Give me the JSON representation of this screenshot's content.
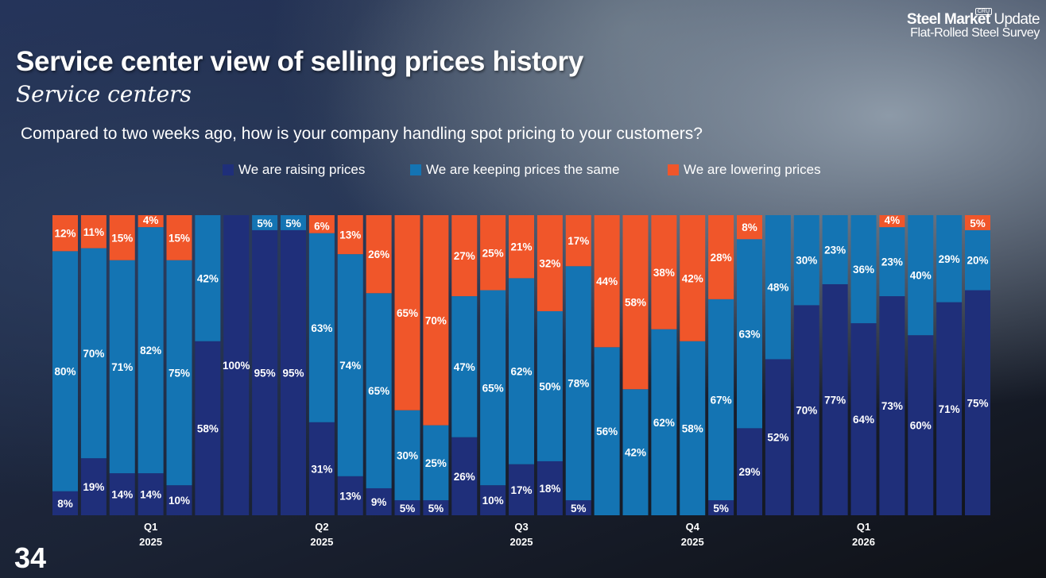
{
  "header": {
    "title": "Service center view of selling prices history",
    "subtitle": "Service centers",
    "question": "Compared to two weeks ago, how is your company handling spot pricing to your customers?"
  },
  "logo": {
    "brand_bold": "Steel Market",
    "brand_light": " Update",
    "survey": "Flat-Rolled Steel Survey",
    "badge": "CRU"
  },
  "page_number": "34",
  "colors": {
    "raising": "#1f2f7a",
    "same": "#1474b3",
    "lowering": "#f0562a"
  },
  "chart_data": {
    "type": "bar",
    "stacked": true,
    "title": "Compared to two weeks ago, how is your company handling spot pricing to your customers?",
    "legend": [
      {
        "name": "We are raising prices",
        "color": "#1f2f7a"
      },
      {
        "name": "We are keeping prices the same",
        "color": "#1474b3"
      },
      {
        "name": "We are lowering prices",
        "color": "#f0562a"
      }
    ],
    "ylim": [
      0,
      100
    ],
    "series": [
      {
        "name": "We are raising prices",
        "values": [
          8,
          19,
          14,
          14,
          10,
          58,
          100,
          95,
          95,
          31,
          13,
          9,
          5,
          5,
          26,
          10,
          17,
          18,
          5,
          0,
          0,
          0,
          0,
          5,
          29,
          52,
          70,
          77,
          64,
          73,
          60,
          71,
          75
        ]
      },
      {
        "name": "We are keeping prices the same",
        "values": [
          80,
          70,
          71,
          82,
          75,
          42,
          0,
          5,
          5,
          63,
          74,
          65,
          30,
          25,
          47,
          65,
          62,
          50,
          78,
          56,
          42,
          62,
          58,
          67,
          63,
          48,
          30,
          23,
          36,
          23,
          40,
          29,
          20
        ]
      },
      {
        "name": "We are lowering prices",
        "values": [
          12,
          11,
          15,
          4,
          15,
          0,
          0,
          0,
          0,
          6,
          13,
          26,
          65,
          70,
          27,
          25,
          21,
          32,
          17,
          44,
          58,
          38,
          42,
          28,
          8,
          0,
          0,
          0,
          0,
          4,
          0,
          0,
          5
        ]
      }
    ],
    "quarter_labels": [
      {
        "quarter": "Q1",
        "year": "2025",
        "bar_index": 3
      },
      {
        "quarter": "Q2",
        "year": "2025",
        "bar_index": 9
      },
      {
        "quarter": "Q3",
        "year": "2025",
        "bar_index": 16
      },
      {
        "quarter": "Q4",
        "year": "2025",
        "bar_index": 22
      },
      {
        "quarter": "Q1",
        "year": "2026",
        "bar_index": 28
      }
    ]
  }
}
